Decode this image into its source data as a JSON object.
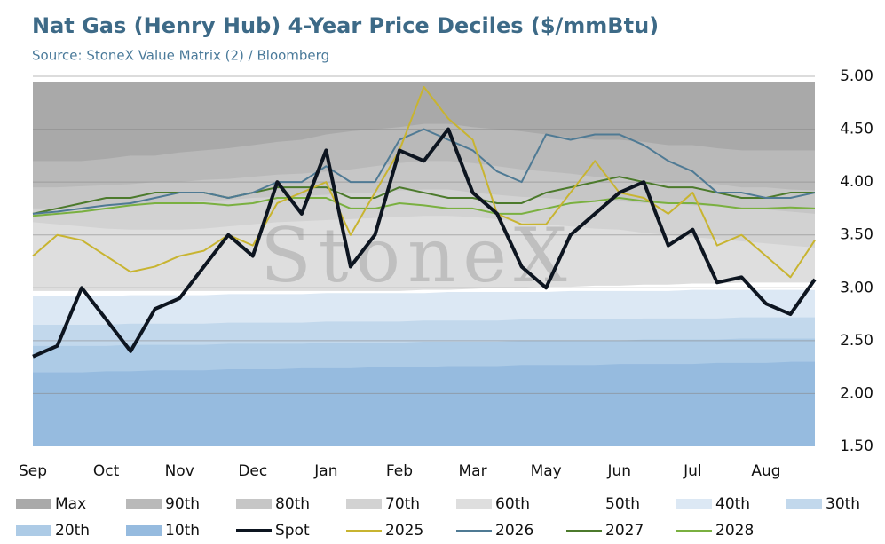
{
  "chart_data": {
    "type": "line",
    "title": "Nat Gas (Henry Hub) 4-Year Price Deciles ($/mmBtu)",
    "subtitle": "Source: StoneX Value Matrix (2) / Bloomberg",
    "watermark": "StoneX",
    "categories": [
      "Sep",
      null,
      null,
      "Oct",
      null,
      null,
      "Nov",
      null,
      null,
      "Dec",
      null,
      null,
      "Jan",
      null,
      null,
      "Feb",
      null,
      null,
      "Mar",
      null,
      null,
      "May",
      null,
      null,
      "Jun",
      null,
      null,
      "Jul",
      null,
      null,
      "Aug",
      null,
      null
    ],
    "ylim": [
      1.5,
      5.0
    ],
    "yticks": [
      {
        "value": 1.5,
        "label": "1.50"
      },
      {
        "value": 2.0,
        "label": "2.00"
      },
      {
        "value": 2.5,
        "label": "2.50"
      },
      {
        "value": 3.0,
        "label": "3.00"
      },
      {
        "value": 3.5,
        "label": "3.50"
      },
      {
        "value": 4.0,
        "label": "4.00"
      },
      {
        "value": 4.5,
        "label": "4.50"
      },
      {
        "value": 5.0,
        "label": "5.00"
      }
    ],
    "grid": true,
    "bands": [
      {
        "name": "Max",
        "color": "#a9a9a9",
        "values": [
          4.95,
          4.95,
          4.95,
          4.95,
          4.95,
          4.95,
          4.95,
          4.95,
          4.95,
          4.95,
          4.95,
          4.95,
          4.95,
          4.95,
          4.95,
          4.95,
          4.95,
          4.95,
          4.95,
          4.95,
          4.95,
          4.95,
          4.95,
          4.95,
          4.95,
          4.95,
          4.95,
          4.95,
          4.95,
          4.95,
          4.95,
          4.95,
          4.95
        ]
      },
      {
        "name": "90th",
        "color": "#b9b9b9",
        "values": [
          4.2,
          4.2,
          4.2,
          4.22,
          4.25,
          4.25,
          4.28,
          4.3,
          4.32,
          4.35,
          4.38,
          4.4,
          4.45,
          4.48,
          4.5,
          4.52,
          4.55,
          4.55,
          4.52,
          4.5,
          4.48,
          4.45,
          4.42,
          4.4,
          4.4,
          4.38,
          4.35,
          4.35,
          4.32,
          4.3,
          4.3,
          4.3,
          4.3
        ]
      },
      {
        "name": "80th",
        "color": "#c6c6c6",
        "values": [
          3.95,
          3.95,
          3.96,
          3.97,
          3.98,
          4.0,
          4.0,
          4.02,
          4.03,
          4.05,
          4.07,
          4.08,
          4.1,
          4.12,
          4.15,
          4.18,
          4.2,
          4.2,
          4.18,
          4.15,
          4.12,
          4.1,
          4.08,
          4.05,
          4.05,
          4.02,
          4.0,
          4.0,
          3.98,
          3.95,
          3.95,
          3.93,
          3.92
        ]
      },
      {
        "name": "70th",
        "color": "#d2d2d2",
        "values": [
          3.75,
          3.75,
          3.76,
          3.77,
          3.78,
          3.8,
          3.8,
          3.82,
          3.83,
          3.85,
          3.86,
          3.87,
          3.88,
          3.9,
          3.9,
          3.92,
          3.93,
          3.93,
          3.9,
          3.88,
          3.86,
          3.85,
          3.83,
          3.82,
          3.82,
          3.8,
          3.8,
          3.78,
          3.77,
          3.75,
          3.74,
          3.72,
          3.7
        ]
      },
      {
        "name": "60th",
        "color": "#dedede",
        "values": [
          3.62,
          3.6,
          3.58,
          3.56,
          3.55,
          3.55,
          3.55,
          3.56,
          3.58,
          3.6,
          3.62,
          3.63,
          3.64,
          3.65,
          3.66,
          3.67,
          3.68,
          3.68,
          3.67,
          3.65,
          3.62,
          3.6,
          3.58,
          3.56,
          3.55,
          3.52,
          3.5,
          3.48,
          3.46,
          3.44,
          3.42,
          3.4,
          3.38
        ]
      },
      {
        "name": "50th",
        "color": "#ffffff",
        "values": [
          2.97,
          2.97,
          2.97,
          2.97,
          2.97,
          2.97,
          2.97,
          2.97,
          2.97,
          2.97,
          2.97,
          2.97,
          2.97,
          2.97,
          2.97,
          2.97,
          2.98,
          2.98,
          2.99,
          3.0,
          3.0,
          3.01,
          3.01,
          3.02,
          3.02,
          3.03,
          3.03,
          3.04,
          3.04,
          3.05,
          3.05,
          3.05,
          3.05
        ]
      },
      {
        "name": "40th",
        "color": "#dce8f4",
        "values": [
          2.92,
          2.92,
          2.92,
          2.92,
          2.93,
          2.93,
          2.93,
          2.93,
          2.94,
          2.94,
          2.94,
          2.94,
          2.95,
          2.95,
          2.95,
          2.95,
          2.95,
          2.96,
          2.96,
          2.96,
          2.96,
          2.96,
          2.97,
          2.97,
          2.97,
          2.97,
          2.97,
          2.98,
          2.98,
          2.98,
          2.98,
          2.98,
          2.98
        ]
      },
      {
        "name": "30th",
        "color": "#c2d8ec",
        "values": [
          2.65,
          2.65,
          2.65,
          2.65,
          2.66,
          2.66,
          2.66,
          2.66,
          2.67,
          2.67,
          2.67,
          2.67,
          2.68,
          2.68,
          2.68,
          2.68,
          2.69,
          2.69,
          2.69,
          2.69,
          2.7,
          2.7,
          2.7,
          2.7,
          2.7,
          2.71,
          2.71,
          2.71,
          2.71,
          2.72,
          2.72,
          2.72,
          2.72
        ]
      },
      {
        "name": "20th",
        "color": "#adcbe6",
        "values": [
          2.45,
          2.45,
          2.45,
          2.45,
          2.46,
          2.46,
          2.46,
          2.46,
          2.47,
          2.47,
          2.47,
          2.47,
          2.48,
          2.48,
          2.48,
          2.48,
          2.49,
          2.49,
          2.49,
          2.49,
          2.5,
          2.5,
          2.5,
          2.5,
          2.5,
          2.51,
          2.51,
          2.51,
          2.51,
          2.52,
          2.52,
          2.52,
          2.52
        ]
      },
      {
        "name": "10th",
        "color": "#96bbdf",
        "values": [
          2.2,
          2.2,
          2.2,
          2.21,
          2.21,
          2.22,
          2.22,
          2.22,
          2.23,
          2.23,
          2.23,
          2.24,
          2.24,
          2.24,
          2.25,
          2.25,
          2.25,
          2.26,
          2.26,
          2.26,
          2.27,
          2.27,
          2.27,
          2.27,
          2.28,
          2.28,
          2.28,
          2.28,
          2.29,
          2.29,
          2.29,
          2.3,
          2.3
        ]
      }
    ],
    "series": [
      {
        "name": "Spot",
        "color": "#0d1520",
        "values": [
          2.35,
          2.45,
          3.0,
          2.7,
          2.4,
          2.8,
          2.9,
          3.2,
          3.5,
          3.3,
          4.0,
          3.7,
          4.3,
          3.2,
          3.5,
          4.3,
          4.2,
          4.5,
          3.9,
          3.7,
          3.2,
          3.0,
          3.5,
          3.7,
          3.9,
          4.0,
          3.4,
          3.55,
          3.05,
          3.1,
          2.85,
          2.75,
          3.08
        ]
      },
      {
        "name": "2025",
        "color": "#c8b430",
        "values": [
          3.3,
          3.5,
          3.45,
          3.3,
          3.15,
          3.2,
          3.3,
          3.35,
          3.5,
          3.4,
          3.8,
          3.9,
          4.0,
          3.5,
          3.9,
          4.3,
          4.9,
          4.6,
          4.4,
          3.7,
          3.6,
          3.6,
          3.9,
          4.2,
          3.9,
          3.85,
          3.7,
          3.9,
          3.4,
          3.5,
          3.3,
          3.1,
          3.45
        ]
      },
      {
        "name": "2026",
        "color": "#4f7a94",
        "values": [
          3.7,
          3.72,
          3.75,
          3.78,
          3.8,
          3.85,
          3.9,
          3.9,
          3.85,
          3.9,
          4.0,
          4.0,
          4.15,
          4.0,
          4.0,
          4.4,
          4.5,
          4.4,
          4.3,
          4.1,
          4.0,
          4.45,
          4.4,
          4.45,
          4.45,
          4.35,
          4.2,
          4.1,
          3.9,
          3.9,
          3.85,
          3.85,
          3.9
        ]
      },
      {
        "name": "2027",
        "color": "#4c7a2c",
        "values": [
          3.7,
          3.75,
          3.8,
          3.85,
          3.85,
          3.9,
          3.9,
          3.9,
          3.85,
          3.9,
          3.95,
          3.95,
          3.95,
          3.85,
          3.85,
          3.95,
          3.9,
          3.85,
          3.85,
          3.8,
          3.8,
          3.9,
          3.95,
          4.0,
          4.05,
          4.0,
          3.95,
          3.95,
          3.9,
          3.85,
          3.85,
          3.9,
          3.9
        ]
      },
      {
        "name": "2028",
        "color": "#7ab040",
        "values": [
          3.68,
          3.7,
          3.72,
          3.75,
          3.78,
          3.8,
          3.8,
          3.8,
          3.78,
          3.8,
          3.85,
          3.85,
          3.85,
          3.75,
          3.75,
          3.8,
          3.78,
          3.75,
          3.75,
          3.7,
          3.7,
          3.75,
          3.8,
          3.82,
          3.85,
          3.82,
          3.8,
          3.8,
          3.78,
          3.75,
          3.75,
          3.76,
          3.75
        ]
      }
    ]
  }
}
